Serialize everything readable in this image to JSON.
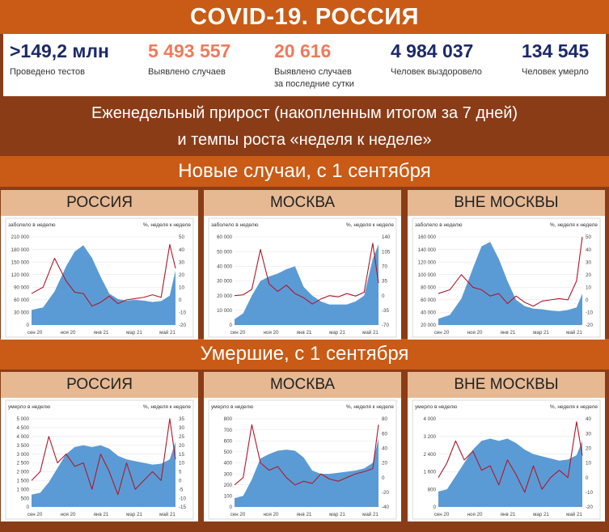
{
  "title": "COVID-19. РОССИЯ",
  "stats": [
    {
      "value": ">149,2 млн",
      "label": "Проведено тестов",
      "color": "#1b2a6b"
    },
    {
      "value": "5 493 557",
      "label": "Выявлено случаев",
      "color": "#f07a5a"
    },
    {
      "value": "20 616",
      "label": "Выявлено случаев\nза последние сутки",
      "color": "#f07a5a"
    },
    {
      "value": "4 984 037",
      "label": "Человек выздоровело",
      "color": "#1b2a6b"
    },
    {
      "value": "134 545",
      "label": "Человек умерло",
      "color": "#1b2a6b"
    }
  ],
  "subtitle_line1": "Еженедельный прирост (накопленным итогом за 7 дней)",
  "subtitle_line2": "и темпы роста «неделя к неделе»",
  "section_cases": "Новые случаи, с 1 сентября",
  "section_deaths": "Умершие, с 1 сентября",
  "colors": {
    "area": "#5b9bd5",
    "line": "#b0172b",
    "title_band": "#c95b16",
    "background": "#8a3c17",
    "panel_header": "#e6b993"
  },
  "chart_data": [
    {
      "type": "area",
      "panel_title": "РОССИЯ",
      "left_label": "заболело в неделю",
      "right_label": "%, неделя к неделе",
      "x_ticks": [
        "сен 20",
        "ноя 20",
        "янв 21",
        "мар 21",
        "май 21"
      ],
      "ylim": [
        0,
        210000
      ],
      "y_ticks": [
        "0",
        "30 000",
        "60 000",
        "90 000",
        "120 000",
        "150 000",
        "180 000",
        "210 000"
      ],
      "y2lim": [
        -20,
        50
      ],
      "y2_ticks": [
        "-20",
        "-10",
        "0",
        "10",
        "20",
        "30",
        "40",
        "50"
      ],
      "x": [
        0,
        0.08,
        0.16,
        0.24,
        0.3,
        0.36,
        0.42,
        0.48,
        0.54,
        0.6,
        0.66,
        0.72,
        0.78,
        0.84,
        0.9,
        0.96,
        1.0
      ],
      "area": [
        36000,
        42000,
        80000,
        140000,
        175000,
        190000,
        160000,
        115000,
        75000,
        62000,
        58000,
        60000,
        58000,
        55000,
        57000,
        70000,
        130000
      ],
      "line": [
        5,
        10,
        33,
        15,
        6,
        5,
        -5,
        -2,
        3,
        -3,
        0,
        1,
        2,
        4,
        2,
        44,
        25
      ]
    },
    {
      "type": "area",
      "panel_title": "МОСКВА",
      "left_label": "заболело в неделю",
      "right_label": "%, неделя к неделе",
      "x_ticks": [
        "сен 20",
        "ноя 20",
        "янв 21",
        "мар 21",
        "май 21"
      ],
      "ylim": [
        0,
        60000
      ],
      "y_ticks": [
        "0",
        "10 000",
        "20 000",
        "30 000",
        "40 000",
        "50 000",
        "60 000"
      ],
      "y2lim": [
        -70,
        140
      ],
      "y2_ticks": [
        "-70",
        "-35",
        "0",
        "35",
        "70",
        "105",
        "140"
      ],
      "x": [
        0,
        0.06,
        0.12,
        0.18,
        0.24,
        0.3,
        0.36,
        0.42,
        0.48,
        0.54,
        0.6,
        0.66,
        0.72,
        0.78,
        0.84,
        0.9,
        0.96,
        1.0
      ],
      "area": [
        4000,
        8000,
        20000,
        30000,
        33000,
        35000,
        38000,
        40000,
        26000,
        20000,
        16000,
        14000,
        14000,
        14000,
        16000,
        20000,
        45000,
        55000
      ],
      "line": [
        0,
        2,
        15,
        110,
        28,
        10,
        25,
        5,
        -5,
        -20,
        -8,
        0,
        -3,
        5,
        -1,
        8,
        125,
        30
      ]
    },
    {
      "type": "area",
      "panel_title": "ВНЕ МОСКВЫ",
      "left_label": "заболело в неделю",
      "right_label": "%, неделя к неделе",
      "x_ticks": [
        "сен 20",
        "ноя 20",
        "янв 21",
        "мар 21",
        "май 21"
      ],
      "ylim": [
        20000,
        160000
      ],
      "y_ticks": [
        "20 000",
        "40 000",
        "60 000",
        "80 000",
        "100 000",
        "120 000",
        "140 000",
        "160 000"
      ],
      "y2lim": [
        -20,
        50
      ],
      "y2_ticks": [
        "-20",
        "-10",
        "0",
        "10",
        "20",
        "30",
        "40",
        "50"
      ],
      "x": [
        0,
        0.08,
        0.16,
        0.24,
        0.3,
        0.36,
        0.42,
        0.48,
        0.54,
        0.6,
        0.66,
        0.72,
        0.78,
        0.84,
        0.9,
        0.96,
        1.0
      ],
      "area": [
        30000,
        36000,
        62000,
        110000,
        145000,
        152000,
        125000,
        90000,
        60000,
        50000,
        46000,
        45000,
        43000,
        42000,
        44000,
        48000,
        70000
      ],
      "line": [
        5,
        8,
        20,
        10,
        8,
        3,
        5,
        -3,
        3,
        -2,
        -5,
        -1,
        0,
        1,
        0,
        15,
        50
      ]
    },
    {
      "type": "area",
      "panel_title": "РОССИЯ",
      "left_label": "умерло в неделю",
      "right_label": "%, неделя к неделе",
      "x_ticks": [
        "сен 20",
        "ноя 20",
        "янв 21",
        "мар 21",
        "май 21"
      ],
      "ylim": [
        0,
        5000
      ],
      "y_ticks": [
        "0",
        "500",
        "1 000",
        "1 500",
        "2 000",
        "2 500",
        "3 000",
        "3 500",
        "4 000",
        "4 500",
        "5 000"
      ],
      "y2lim": [
        -15,
        35
      ],
      "y2_ticks": [
        "-15",
        "-10",
        "-5",
        "0",
        "5",
        "10",
        "15",
        "20",
        "25",
        "30",
        "35"
      ],
      "x": [
        0,
        0.06,
        0.12,
        0.18,
        0.24,
        0.3,
        0.36,
        0.42,
        0.48,
        0.54,
        0.6,
        0.66,
        0.72,
        0.78,
        0.84,
        0.9,
        0.96,
        1.0
      ],
      "area": [
        700,
        800,
        1400,
        2200,
        3000,
        3400,
        3500,
        3400,
        3500,
        3300,
        2900,
        2700,
        2600,
        2500,
        2400,
        2450,
        2700,
        3700
      ],
      "line": [
        0,
        5,
        25,
        10,
        15,
        8,
        10,
        -5,
        15,
        5,
        -8,
        10,
        -5,
        0,
        5,
        0,
        35,
        12
      ]
    },
    {
      "type": "area",
      "panel_title": "МОСКВА",
      "left_label": "умерло в неделю",
      "right_label": "%, неделя к неделе",
      "x_ticks": [
        "сен 20",
        "ноя 20",
        "янв 21",
        "мар 21",
        "май 21"
      ],
      "ylim": [
        0,
        800
      ],
      "y_ticks": [
        "0",
        "100",
        "200",
        "300",
        "400",
        "500",
        "600",
        "700",
        "800"
      ],
      "y2lim": [
        -40,
        80
      ],
      "y2_ticks": [
        "-40",
        "-20",
        "0",
        "20",
        "40",
        "60",
        "80"
      ],
      "x": [
        0,
        0.06,
        0.12,
        0.18,
        0.24,
        0.3,
        0.36,
        0.42,
        0.48,
        0.54,
        0.6,
        0.66,
        0.72,
        0.78,
        0.84,
        0.9,
        0.96,
        1.0
      ],
      "area": [
        80,
        100,
        250,
        440,
        480,
        510,
        520,
        510,
        450,
        330,
        300,
        300,
        310,
        320,
        330,
        350,
        400,
        620
      ],
      "line": [
        -10,
        0,
        72,
        20,
        10,
        15,
        0,
        -10,
        -5,
        -8,
        5,
        -2,
        -5,
        0,
        5,
        8,
        12,
        72
      ]
    },
    {
      "type": "area",
      "panel_title": "ВНЕ МОСКВЫ",
      "left_label": "умерло в неделю",
      "right_label": "%, неделя к неделе",
      "x_ticks": [
        "сен 20",
        "ноя 20",
        "янв 21",
        "мар 21",
        "май 21"
      ],
      "ylim": [
        0,
        4000
      ],
      "y_ticks": [
        "0",
        "800",
        "1 600",
        "2 400",
        "3 200",
        "4 000"
      ],
      "y2lim": [
        -20,
        40
      ],
      "y2_ticks": [
        "-20",
        "-10",
        "0",
        "10",
        "20",
        "30",
        "40"
      ],
      "x": [
        0,
        0.06,
        0.12,
        0.18,
        0.24,
        0.3,
        0.36,
        0.42,
        0.48,
        0.54,
        0.6,
        0.66,
        0.72,
        0.78,
        0.84,
        0.9,
        0.96,
        1.0
      ],
      "area": [
        700,
        800,
        1400,
        2000,
        2600,
        3000,
        3100,
        3000,
        3100,
        2900,
        2600,
        2400,
        2300,
        2200,
        2100,
        2150,
        2350,
        3000
      ],
      "line": [
        0,
        10,
        25,
        12,
        18,
        5,
        8,
        -5,
        12,
        2,
        -10,
        8,
        -8,
        0,
        5,
        0,
        38,
        15
      ]
    }
  ]
}
